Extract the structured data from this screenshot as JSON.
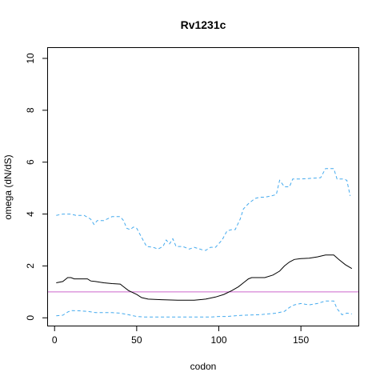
{
  "chart_data": {
    "type": "line",
    "title": "Rv1231c",
    "xlabel": "codon",
    "ylabel": "omega (dN/dS)",
    "xlim": [
      -4,
      185
    ],
    "ylim": [
      -0.3,
      10.4
    ],
    "xticks": [
      0,
      50,
      100,
      150
    ],
    "yticks": [
      0,
      2,
      4,
      6,
      8,
      10
    ],
    "grid": false,
    "reference_line": {
      "y": 1,
      "color": "#cc66cc"
    },
    "series": [
      {
        "style": "solid",
        "color": "#000000",
        "points": [
          [
            1,
            1.35
          ],
          [
            5,
            1.4
          ],
          [
            8,
            1.55
          ],
          [
            10,
            1.55
          ],
          [
            12,
            1.5
          ],
          [
            20,
            1.5
          ],
          [
            22,
            1.42
          ],
          [
            25,
            1.4
          ],
          [
            30,
            1.35
          ],
          [
            35,
            1.32
          ],
          [
            40,
            1.3
          ],
          [
            42,
            1.2
          ],
          [
            45,
            1.05
          ],
          [
            50,
            0.9
          ],
          [
            53,
            0.78
          ],
          [
            57,
            0.72
          ],
          [
            65,
            0.7
          ],
          [
            75,
            0.68
          ],
          [
            85,
            0.68
          ],
          [
            92,
            0.72
          ],
          [
            98,
            0.8
          ],
          [
            103,
            0.9
          ],
          [
            108,
            1.05
          ],
          [
            112,
            1.2
          ],
          [
            115,
            1.35
          ],
          [
            118,
            1.5
          ],
          [
            120,
            1.55
          ],
          [
            128,
            1.55
          ],
          [
            133,
            1.65
          ],
          [
            137,
            1.8
          ],
          [
            140,
            2.0
          ],
          [
            143,
            2.15
          ],
          [
            146,
            2.25
          ],
          [
            150,
            2.28
          ],
          [
            155,
            2.3
          ],
          [
            160,
            2.35
          ],
          [
            165,
            2.42
          ],
          [
            170,
            2.42
          ],
          [
            173,
            2.25
          ],
          [
            177,
            2.05
          ],
          [
            181,
            1.9
          ]
        ]
      },
      {
        "style": "dashed",
        "color": "#44aaee",
        "points": [
          [
            1,
            3.95
          ],
          [
            5,
            4.0
          ],
          [
            10,
            4.0
          ],
          [
            13,
            3.95
          ],
          [
            18,
            3.95
          ],
          [
            22,
            3.8
          ],
          [
            24,
            3.6
          ],
          [
            26,
            3.75
          ],
          [
            30,
            3.75
          ],
          [
            35,
            3.9
          ],
          [
            40,
            3.9
          ],
          [
            42,
            3.75
          ],
          [
            44,
            3.45
          ],
          [
            46,
            3.4
          ],
          [
            48,
            3.5
          ],
          [
            50,
            3.45
          ],
          [
            53,
            3.1
          ],
          [
            56,
            2.75
          ],
          [
            60,
            2.72
          ],
          [
            63,
            2.65
          ],
          [
            66,
            2.75
          ],
          [
            68,
            3.0
          ],
          [
            70,
            2.85
          ],
          [
            72,
            3.05
          ],
          [
            74,
            2.75
          ],
          [
            78,
            2.75
          ],
          [
            82,
            2.65
          ],
          [
            85,
            2.72
          ],
          [
            90,
            2.62
          ],
          [
            92,
            2.6
          ],
          [
            95,
            2.72
          ],
          [
            98,
            2.72
          ],
          [
            102,
            3.0
          ],
          [
            105,
            3.35
          ],
          [
            108,
            3.4
          ],
          [
            110,
            3.4
          ],
          [
            113,
            3.8
          ],
          [
            115,
            4.2
          ],
          [
            118,
            4.4
          ],
          [
            122,
            4.6
          ],
          [
            125,
            4.65
          ],
          [
            128,
            4.65
          ],
          [
            132,
            4.7
          ],
          [
            135,
            4.75
          ],
          [
            137,
            5.3
          ],
          [
            140,
            5.05
          ],
          [
            143,
            5.05
          ],
          [
            145,
            5.35
          ],
          [
            150,
            5.35
          ],
          [
            162,
            5.4
          ],
          [
            165,
            5.75
          ],
          [
            170,
            5.75
          ],
          [
            172,
            5.35
          ],
          [
            176,
            5.35
          ],
          [
            178,
            5.3
          ],
          [
            180,
            4.7
          ]
        ]
      },
      {
        "style": "dashed",
        "color": "#44aaee",
        "points": [
          [
            1,
            0.08
          ],
          [
            5,
            0.1
          ],
          [
            8,
            0.22
          ],
          [
            10,
            0.28
          ],
          [
            15,
            0.27
          ],
          [
            20,
            0.25
          ],
          [
            25,
            0.2
          ],
          [
            35,
            0.2
          ],
          [
            40,
            0.18
          ],
          [
            45,
            0.12
          ],
          [
            50,
            0.05
          ],
          [
            55,
            0.03
          ],
          [
            70,
            0.03
          ],
          [
            85,
            0.03
          ],
          [
            95,
            0.03
          ],
          [
            100,
            0.05
          ],
          [
            105,
            0.05
          ],
          [
            110,
            0.08
          ],
          [
            115,
            0.1
          ],
          [
            125,
            0.12
          ],
          [
            135,
            0.18
          ],
          [
            140,
            0.25
          ],
          [
            143,
            0.4
          ],
          [
            146,
            0.5
          ],
          [
            150,
            0.55
          ],
          [
            155,
            0.5
          ],
          [
            160,
            0.55
          ],
          [
            165,
            0.65
          ],
          [
            170,
            0.65
          ],
          [
            172,
            0.35
          ],
          [
            175,
            0.12
          ],
          [
            178,
            0.18
          ],
          [
            181,
            0.15
          ]
        ]
      }
    ]
  }
}
